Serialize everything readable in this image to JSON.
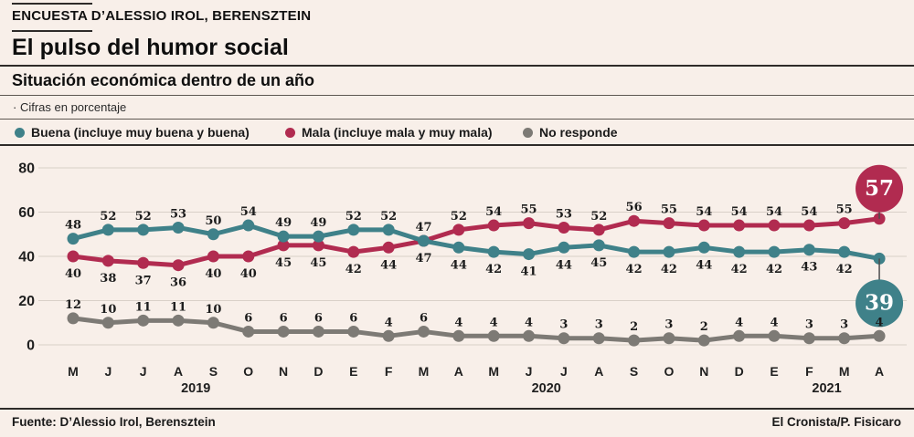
{
  "header": {
    "kicker": "ENCUESTA D’ALESSIO IROL, BERENSZTEIN",
    "title": "El pulso del humor social",
    "subtitle": "Situación económica dentro de un año",
    "note": "· Cifras en porcentaje"
  },
  "chart_data": {
    "type": "line",
    "title": "Situación económica dentro de un año",
    "unit": "porcentaje",
    "x": [
      "M",
      "J",
      "J",
      "A",
      "S",
      "O",
      "N",
      "D",
      "E",
      "F",
      "M",
      "A",
      "M",
      "J",
      "J",
      "A",
      "S",
      "O",
      "N",
      "D",
      "E",
      "F",
      "M",
      "A"
    ],
    "x_years": [
      {
        "label": "2019",
        "between": [
          3,
          4
        ]
      },
      {
        "label": "2020",
        "between": [
          13,
          14
        ]
      },
      {
        "label": "2021",
        "between": [
          21,
          22
        ]
      }
    ],
    "series": [
      {
        "name": "Buena (incluye muy buena y buena)",
        "color": "#3f8189",
        "values": [
          48,
          52,
          52,
          53,
          50,
          54,
          49,
          49,
          52,
          52,
          47,
          44,
          42,
          41,
          44,
          45,
          42,
          42,
          44,
          42,
          42,
          43,
          42,
          39
        ],
        "highlight_last": true
      },
      {
        "name": "Mala (incluye mala y muy mala)",
        "color": "#b12b50",
        "values": [
          40,
          38,
          37,
          36,
          40,
          40,
          45,
          45,
          42,
          44,
          47,
          52,
          54,
          55,
          53,
          52,
          56,
          55,
          54,
          54,
          54,
          54,
          55,
          57
        ],
        "highlight_last": true
      },
      {
        "name": "No responde",
        "color": "#7d7a75",
        "values": [
          12,
          10,
          11,
          11,
          10,
          6,
          6,
          6,
          6,
          4,
          6,
          4,
          4,
          4,
          3,
          3,
          2,
          3,
          2,
          4,
          4,
          3,
          3,
          4
        ],
        "highlight_last": false
      }
    ],
    "ylim": [
      0,
      80
    ],
    "yticks": [
      0,
      20,
      40,
      60,
      80
    ],
    "grid": true,
    "legend_position": "top"
  },
  "footer": {
    "source": "Fuente: D’Alessio Irol, Berensztein",
    "credit": "El Cronista/P. Fisicaro"
  }
}
